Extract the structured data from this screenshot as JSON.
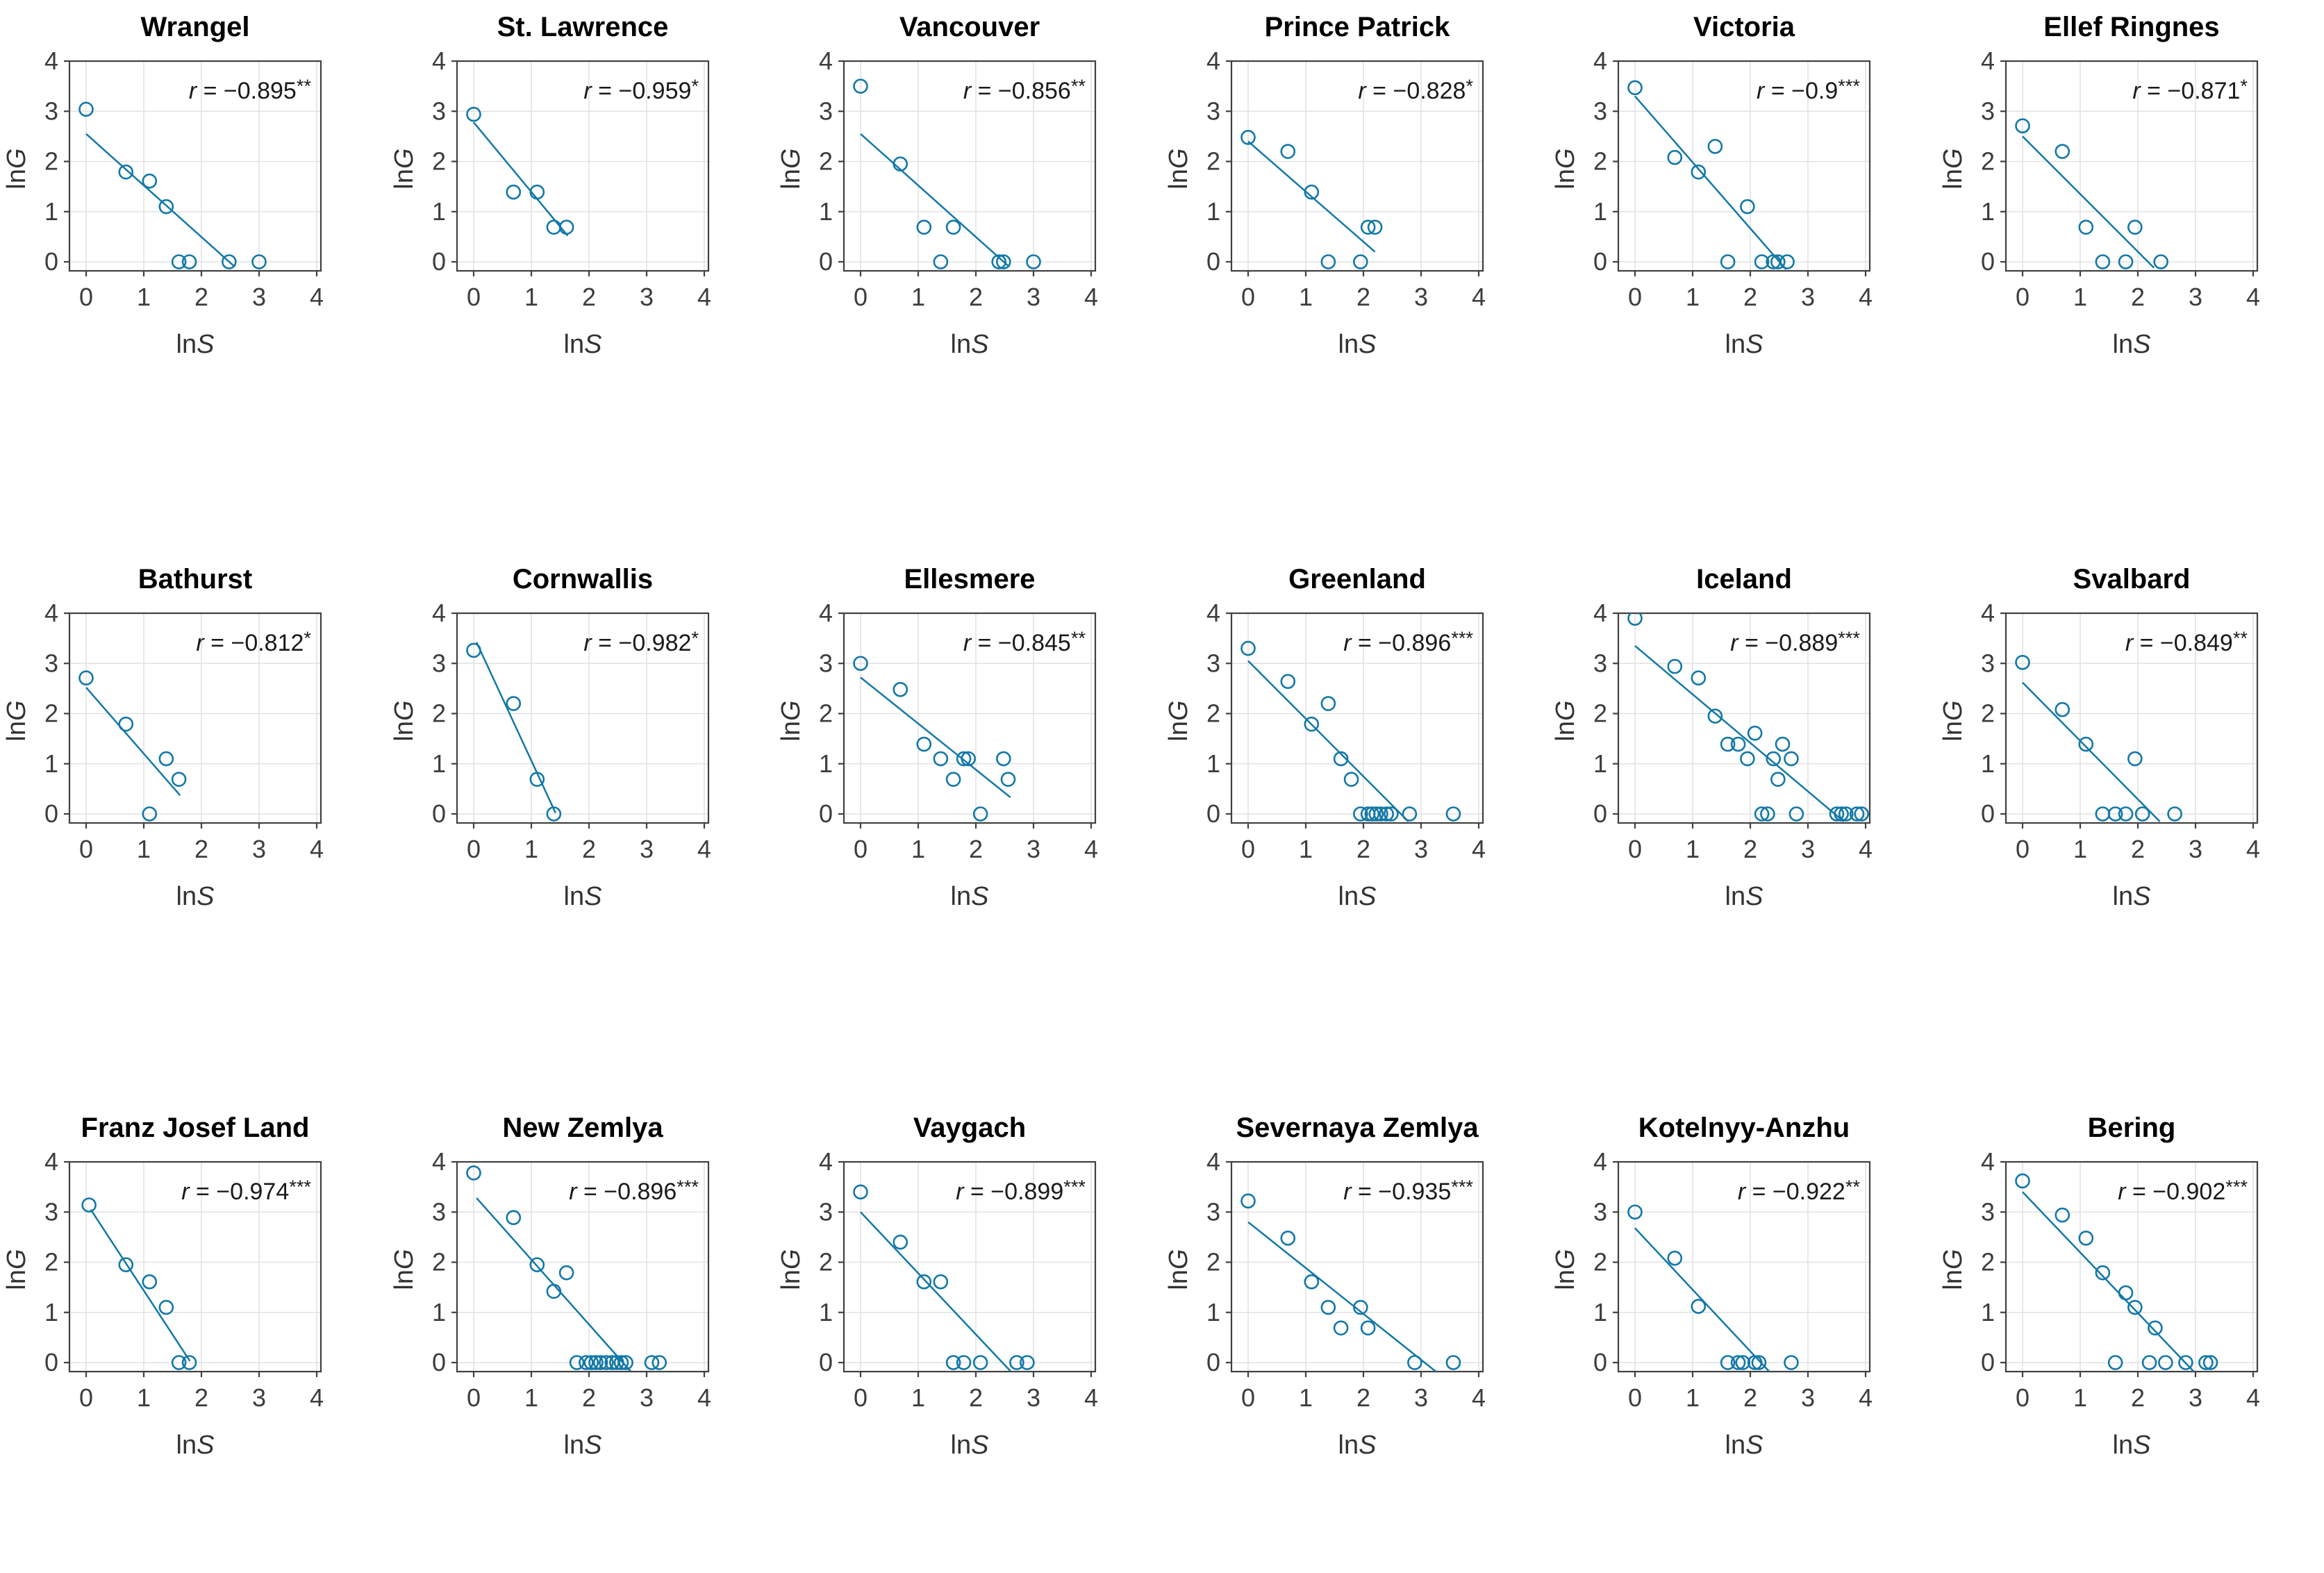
{
  "figure": {
    "xlabel": "lnS",
    "ylabel": "lnG",
    "xlim": [
      0,
      4
    ],
    "ylim": [
      0,
      4
    ],
    "xticks": [
      "0",
      "1",
      "2",
      "3",
      "4"
    ],
    "yticks": [
      "0",
      "1",
      "2",
      "3",
      "4"
    ],
    "grid": true,
    "rows": 3,
    "cols": 6,
    "marker_color": "#1278A8",
    "line_color": "#1278A8",
    "axis_color": "#404040",
    "grid_color": "#E2E2E2",
    "tick_label_color": "#3D3D3D",
    "title_color": "#000000",
    "r_prefix": "r",
    "r_equals": " = "
  },
  "chart_data": [
    {
      "type": "scatter",
      "title": "Wrangel",
      "r_value": "−0.895",
      "stars": "**",
      "xlabel": "lnS",
      "ylabel": "lnG",
      "xlim": [
        0,
        4
      ],
      "ylim": [
        0,
        4
      ],
      "points": [
        [
          0,
          3.04
        ],
        [
          0.69,
          1.79
        ],
        [
          1.1,
          1.61
        ],
        [
          1.39,
          1.1
        ],
        [
          1.61,
          0
        ],
        [
          1.79,
          0
        ],
        [
          2.48,
          0
        ],
        [
          3.0,
          0
        ]
      ],
      "fit_line": [
        [
          0,
          2.55
        ],
        [
          2.56,
          -0.08
        ]
      ]
    },
    {
      "type": "scatter",
      "title": "St. Lawrence",
      "r_value": "−0.959",
      "stars": "*",
      "xlabel": "lnS",
      "ylabel": "lnG",
      "xlim": [
        0,
        4
      ],
      "ylim": [
        0,
        4
      ],
      "points": [
        [
          0,
          2.94
        ],
        [
          0.69,
          1.39
        ],
        [
          1.1,
          1.39
        ],
        [
          1.39,
          0.69
        ],
        [
          1.61,
          0.69
        ]
      ],
      "fit_line": [
        [
          0,
          2.78
        ],
        [
          1.63,
          0.52
        ]
      ]
    },
    {
      "type": "scatter",
      "title": "Vancouver",
      "r_value": "−0.856",
      "stars": "**",
      "xlabel": "lnS",
      "ylabel": "lnG",
      "xlim": [
        0,
        4
      ],
      "ylim": [
        0,
        4
      ],
      "points": [
        [
          0,
          3.5
        ],
        [
          0.69,
          1.95
        ],
        [
          1.1,
          0.69
        ],
        [
          1.39,
          0
        ],
        [
          1.61,
          0.69
        ],
        [
          2.4,
          0
        ],
        [
          2.48,
          0
        ],
        [
          3.0,
          0
        ]
      ],
      "fit_line": [
        [
          0,
          2.55
        ],
        [
          2.58,
          -0.1
        ]
      ]
    },
    {
      "type": "scatter",
      "title": "Prince Patrick",
      "r_value": "−0.828",
      "stars": "*",
      "xlabel": "lnS",
      "ylabel": "lnG",
      "xlim": [
        0,
        4
      ],
      "ylim": [
        0,
        4
      ],
      "points": [
        [
          0,
          2.48
        ],
        [
          0.69,
          2.2
        ],
        [
          1.1,
          1.39
        ],
        [
          1.39,
          0
        ],
        [
          1.95,
          0
        ],
        [
          2.08,
          0.69
        ],
        [
          2.2,
          0.69
        ]
      ],
      "fit_line": [
        [
          0,
          2.4
        ],
        [
          2.2,
          0.2
        ]
      ]
    },
    {
      "type": "scatter",
      "title": "Victoria",
      "r_value": "−0.9",
      "stars": "***",
      "xlabel": "lnS",
      "ylabel": "lnG",
      "xlim": [
        0,
        4
      ],
      "ylim": [
        0,
        4
      ],
      "points": [
        [
          0,
          3.47
        ],
        [
          0.69,
          2.08
        ],
        [
          1.1,
          1.79
        ],
        [
          1.39,
          2.3
        ],
        [
          1.61,
          0
        ],
        [
          1.95,
          1.1
        ],
        [
          2.2,
          0
        ],
        [
          2.4,
          0
        ],
        [
          2.48,
          0
        ],
        [
          2.64,
          0
        ]
      ],
      "fit_line": [
        [
          0,
          3.3
        ],
        [
          2.62,
          -0.15
        ]
      ]
    },
    {
      "type": "scatter",
      "title": "Ellef Ringnes",
      "r_value": "−0.871",
      "stars": "*",
      "xlabel": "lnS",
      "ylabel": "lnG",
      "xlim": [
        0,
        4
      ],
      "ylim": [
        0,
        4
      ],
      "points": [
        [
          0,
          2.71
        ],
        [
          0.69,
          2.2
        ],
        [
          1.1,
          0.69
        ],
        [
          1.39,
          0
        ],
        [
          1.79,
          0
        ],
        [
          1.95,
          0.69
        ],
        [
          2.4,
          0
        ]
      ],
      "fit_line": [
        [
          0,
          2.5
        ],
        [
          2.28,
          -0.12
        ]
      ]
    },
    {
      "type": "scatter",
      "title": "Bathurst",
      "r_value": "−0.812",
      "stars": "*",
      "xlabel": "lnS",
      "ylabel": "lnG",
      "xlim": [
        0,
        4
      ],
      "ylim": [
        0,
        4
      ],
      "points": [
        [
          0,
          2.71
        ],
        [
          0.69,
          1.79
        ],
        [
          1.1,
          0
        ],
        [
          1.39,
          1.1
        ],
        [
          1.61,
          0.69
        ]
      ],
      "fit_line": [
        [
          0,
          2.52
        ],
        [
          1.63,
          0.37
        ]
      ]
    },
    {
      "type": "scatter",
      "title": "Cornwallis",
      "r_value": "−0.982",
      "stars": "*",
      "xlabel": "lnS",
      "ylabel": "lnG",
      "xlim": [
        0,
        4
      ],
      "ylim": [
        0,
        4
      ],
      "points": [
        [
          0,
          3.26
        ],
        [
          0.69,
          2.2
        ],
        [
          1.1,
          0.69
        ],
        [
          1.39,
          0
        ]
      ],
      "fit_line": [
        [
          0.05,
          3.42
        ],
        [
          1.42,
          0.02
        ]
      ]
    },
    {
      "type": "scatter",
      "title": "Ellesmere",
      "r_value": "−0.845",
      "stars": "**",
      "xlabel": "lnS",
      "ylabel": "lnG",
      "xlim": [
        0,
        4
      ],
      "ylim": [
        0,
        4
      ],
      "points": [
        [
          0,
          3.0
        ],
        [
          0.69,
          2.48
        ],
        [
          1.1,
          1.39
        ],
        [
          1.39,
          1.1
        ],
        [
          1.61,
          0.69
        ],
        [
          1.79,
          1.1
        ],
        [
          1.87,
          1.1
        ],
        [
          2.08,
          0
        ],
        [
          2.48,
          1.1
        ],
        [
          2.56,
          0.69
        ]
      ],
      "fit_line": [
        [
          0,
          2.72
        ],
        [
          2.6,
          0.33
        ]
      ]
    },
    {
      "type": "scatter",
      "title": "Greenland",
      "r_value": "−0.896",
      "stars": "***",
      "xlabel": "lnS",
      "ylabel": "lnG",
      "xlim": [
        0,
        4
      ],
      "ylim": [
        0,
        4
      ],
      "points": [
        [
          0,
          3.3
        ],
        [
          0.69,
          2.64
        ],
        [
          1.1,
          1.79
        ],
        [
          1.39,
          2.2
        ],
        [
          1.61,
          1.1
        ],
        [
          1.79,
          0.69
        ],
        [
          1.95,
          0
        ],
        [
          2.08,
          0
        ],
        [
          2.15,
          0
        ],
        [
          2.22,
          0
        ],
        [
          2.3,
          0
        ],
        [
          2.4,
          0
        ],
        [
          2.48,
          0
        ],
        [
          2.8,
          0
        ],
        [
          3.56,
          0
        ]
      ],
      "fit_line": [
        [
          0,
          3.05
        ],
        [
          2.78,
          -0.15
        ]
      ]
    },
    {
      "type": "scatter",
      "title": "Iceland",
      "r_value": "−0.889",
      "stars": "***",
      "xlabel": "lnS",
      "ylabel": "lnG",
      "xlim": [
        0,
        4
      ],
      "ylim": [
        0,
        4
      ],
      "points": [
        [
          0,
          3.9
        ],
        [
          0.69,
          2.94
        ],
        [
          1.1,
          2.71
        ],
        [
          1.39,
          1.95
        ],
        [
          1.61,
          1.39
        ],
        [
          1.79,
          1.39
        ],
        [
          1.95,
          1.1
        ],
        [
          2.08,
          1.61
        ],
        [
          2.2,
          0
        ],
        [
          2.3,
          0
        ],
        [
          2.4,
          1.1
        ],
        [
          2.48,
          0.69
        ],
        [
          2.56,
          1.39
        ],
        [
          2.71,
          1.1
        ],
        [
          2.8,
          0
        ],
        [
          3.5,
          0
        ],
        [
          3.58,
          0
        ],
        [
          3.66,
          0
        ],
        [
          3.85,
          0
        ],
        [
          3.93,
          0
        ]
      ],
      "fit_line": [
        [
          0,
          3.35
        ],
        [
          3.62,
          -0.15
        ]
      ]
    },
    {
      "type": "scatter",
      "title": "Svalbard",
      "r_value": "−0.849",
      "stars": "**",
      "xlabel": "lnS",
      "ylabel": "lnG",
      "xlim": [
        0,
        4
      ],
      "ylim": [
        0,
        4
      ],
      "points": [
        [
          0,
          3.02
        ],
        [
          0.69,
          2.08
        ],
        [
          1.1,
          1.39
        ],
        [
          1.39,
          0
        ],
        [
          1.61,
          0
        ],
        [
          1.79,
          0
        ],
        [
          1.95,
          1.1
        ],
        [
          2.08,
          0
        ],
        [
          2.64,
          0
        ]
      ],
      "fit_line": [
        [
          0,
          2.62
        ],
        [
          2.38,
          -0.15
        ]
      ]
    },
    {
      "type": "scatter",
      "title": "Franz Josef Land",
      "r_value": "−0.974",
      "stars": "***",
      "xlabel": "lnS",
      "ylabel": "lnG",
      "xlim": [
        0,
        4
      ],
      "ylim": [
        0,
        4
      ],
      "points": [
        [
          0.05,
          3.14
        ],
        [
          0.69,
          1.95
        ],
        [
          1.1,
          1.61
        ],
        [
          1.39,
          1.1
        ],
        [
          1.61,
          0
        ],
        [
          1.79,
          0
        ]
      ],
      "fit_line": [
        [
          0.08,
          3.05
        ],
        [
          1.8,
          0.03
        ]
      ]
    },
    {
      "type": "scatter",
      "title": "New Zemlya",
      "r_value": "−0.896",
      "stars": "***",
      "xlabel": "lnS",
      "ylabel": "lnG",
      "xlim": [
        0,
        4
      ],
      "ylim": [
        0,
        4
      ],
      "points": [
        [
          0,
          3.78
        ],
        [
          0.69,
          2.89
        ],
        [
          1.1,
          1.95
        ],
        [
          1.39,
          1.42
        ],
        [
          1.61,
          1.79
        ],
        [
          1.79,
          0
        ],
        [
          1.95,
          0
        ],
        [
          2.04,
          0
        ],
        [
          2.12,
          0
        ],
        [
          2.2,
          0
        ],
        [
          2.3,
          0
        ],
        [
          2.4,
          0
        ],
        [
          2.48,
          0
        ],
        [
          2.56,
          0
        ],
        [
          2.64,
          0
        ],
        [
          3.09,
          0
        ],
        [
          3.22,
          0
        ]
      ],
      "fit_line": [
        [
          0.05,
          3.28
        ],
        [
          2.72,
          -0.17
        ]
      ]
    },
    {
      "type": "scatter",
      "title": "Vaygach",
      "r_value": "−0.899",
      "stars": "***",
      "xlabel": "lnS",
      "ylabel": "lnG",
      "xlim": [
        0,
        4
      ],
      "ylim": [
        0,
        4
      ],
      "points": [
        [
          0,
          3.4
        ],
        [
          0.69,
          2.4
        ],
        [
          1.1,
          1.61
        ],
        [
          1.39,
          1.61
        ],
        [
          1.61,
          0
        ],
        [
          1.79,
          0
        ],
        [
          2.08,
          0
        ],
        [
          2.71,
          0
        ],
        [
          2.89,
          0
        ]
      ],
      "fit_line": [
        [
          0,
          3.0
        ],
        [
          2.6,
          -0.17
        ]
      ]
    },
    {
      "type": "scatter",
      "title": "Severnaya Zemlya",
      "r_value": "−0.935",
      "stars": "***",
      "xlabel": "lnS",
      "ylabel": "lnG",
      "xlim": [
        0,
        4
      ],
      "ylim": [
        0,
        4
      ],
      "points": [
        [
          0,
          3.22
        ],
        [
          0.69,
          2.48
        ],
        [
          1.1,
          1.61
        ],
        [
          1.39,
          1.1
        ],
        [
          1.61,
          0.69
        ],
        [
          1.95,
          1.1
        ],
        [
          2.08,
          0.69
        ],
        [
          2.89,
          0
        ],
        [
          3.56,
          0
        ]
      ],
      "fit_line": [
        [
          0,
          2.8
        ],
        [
          3.28,
          -0.2
        ]
      ]
    },
    {
      "type": "scatter",
      "title": "Kotelnyy-Anzhu",
      "r_value": "−0.922",
      "stars": "**",
      "xlabel": "lnS",
      "ylabel": "lnG",
      "xlim": [
        0,
        4
      ],
      "ylim": [
        0,
        4
      ],
      "points": [
        [
          0,
          3.0
        ],
        [
          0.69,
          2.08
        ],
        [
          1.1,
          1.12
        ],
        [
          1.61,
          0
        ],
        [
          1.79,
          0
        ],
        [
          1.87,
          0
        ],
        [
          2.08,
          0
        ],
        [
          2.15,
          0
        ],
        [
          2.71,
          0
        ]
      ],
      "fit_line": [
        [
          0,
          2.68
        ],
        [
          2.33,
          -0.18
        ]
      ]
    },
    {
      "type": "scatter",
      "title": "Bering",
      "r_value": "−0.902",
      "stars": "***",
      "xlabel": "lnS",
      "ylabel": "lnG",
      "xlim": [
        0,
        4
      ],
      "ylim": [
        0,
        4
      ],
      "points": [
        [
          0,
          3.62
        ],
        [
          0.69,
          2.94
        ],
        [
          1.1,
          2.48
        ],
        [
          1.39,
          1.79
        ],
        [
          1.61,
          0
        ],
        [
          1.79,
          1.39
        ],
        [
          1.95,
          1.1
        ],
        [
          2.2,
          0
        ],
        [
          2.3,
          0.69
        ],
        [
          2.48,
          0
        ],
        [
          2.83,
          0
        ],
        [
          3.18,
          0
        ],
        [
          3.26,
          0
        ]
      ],
      "fit_line": [
        [
          0,
          3.4
        ],
        [
          2.97,
          -0.18
        ]
      ]
    }
  ]
}
